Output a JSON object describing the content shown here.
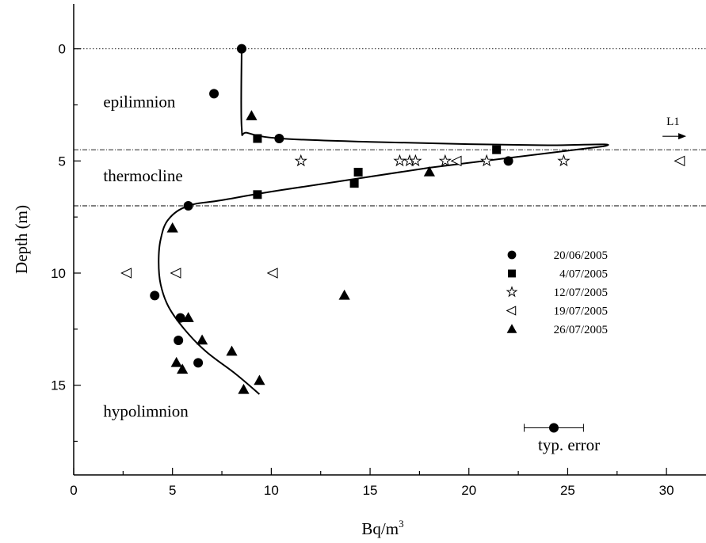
{
  "chart_data": {
    "type": "scatter",
    "xlabel": "Bq/m",
    "xlabel_sup": "3",
    "ylabel": "Depth (m)",
    "xlim": [
      0,
      32
    ],
    "ylim": [
      19,
      -2
    ],
    "y_inverted": true,
    "x_ticks": [
      0,
      5,
      10,
      15,
      20,
      25,
      30
    ],
    "y_ticks": [
      0,
      5,
      10,
      15
    ],
    "grid": false,
    "legend_position": "right",
    "series": [
      {
        "name": "20/06/2005",
        "marker": "filled-circle",
        "points": [
          [
            8.5,
            0
          ],
          [
            7.1,
            2
          ],
          [
            10.4,
            4
          ],
          [
            22.0,
            5
          ],
          [
            5.8,
            7
          ],
          [
            4.1,
            11
          ],
          [
            5.4,
            12
          ],
          [
            5.3,
            13
          ],
          [
            6.3,
            14
          ]
        ]
      },
      {
        "name": "4/07/2005",
        "marker": "filled-square",
        "points": [
          [
            9.3,
            4
          ],
          [
            21.4,
            4.5
          ],
          [
            14.4,
            5.5
          ],
          [
            14.2,
            6
          ],
          [
            9.3,
            6.5
          ]
        ]
      },
      {
        "name": "12/07/2005",
        "marker": "open-star",
        "points": [
          [
            11.5,
            5
          ],
          [
            16.5,
            5
          ],
          [
            17.0,
            5
          ],
          [
            17.3,
            5
          ],
          [
            18.8,
            5
          ],
          [
            20.9,
            5
          ],
          [
            24.8,
            5
          ]
        ]
      },
      {
        "name": "19/07/2005",
        "marker": "open-triangle-left",
        "points": [
          [
            19.4,
            5
          ],
          [
            30.7,
            5
          ],
          [
            2.7,
            10
          ],
          [
            5.2,
            10
          ],
          [
            10.1,
            10
          ]
        ]
      },
      {
        "name": "26/07/2005",
        "marker": "filled-triangle-up",
        "points": [
          [
            9.0,
            3
          ],
          [
            18.0,
            5.5
          ],
          [
            5.0,
            8
          ],
          [
            13.7,
            11
          ],
          [
            5.8,
            12
          ],
          [
            6.5,
            13
          ],
          [
            8.0,
            13.5
          ],
          [
            5.2,
            14
          ],
          [
            5.5,
            14.3
          ],
          [
            9.4,
            14.8
          ],
          [
            8.6,
            15.2
          ]
        ]
      }
    ],
    "fit_curve": [
      [
        8.5,
        0
      ],
      [
        8.5,
        3.5
      ],
      [
        8.8,
        3.75
      ],
      [
        10.5,
        4.0
      ],
      [
        15.0,
        4.15
      ],
      [
        20.0,
        4.25
      ],
      [
        24.0,
        4.3
      ],
      [
        26.8,
        4.35
      ],
      [
        18.0,
        5.3
      ],
      [
        10.5,
        6.3
      ],
      [
        7.5,
        6.75
      ],
      [
        5.8,
        7.0
      ],
      [
        4.8,
        7.6
      ],
      [
        4.4,
        8.5
      ],
      [
        4.3,
        9.5
      ],
      [
        4.4,
        10.5
      ],
      [
        4.8,
        11.5
      ],
      [
        5.6,
        12.5
      ],
      [
        6.7,
        13.5
      ],
      [
        8.2,
        14.5
      ],
      [
        9.4,
        15.4
      ]
    ],
    "reference_lines": [
      {
        "y": 0,
        "style": "dotted"
      },
      {
        "y": 4.5,
        "style": "dash-dot"
      },
      {
        "y": 7.0,
        "style": "dash-dot"
      }
    ],
    "annotations": [
      {
        "text": "epilimnion",
        "x": 1.5,
        "y": 2.6
      },
      {
        "text": "thermocline",
        "x": 1.5,
        "y": 5.9
      },
      {
        "text": "hypolimnion",
        "x": 1.5,
        "y": 16.4
      },
      {
        "text": "L1",
        "x": 30.0,
        "y": 3.4
      },
      {
        "text": "typ. error",
        "x": 23.5,
        "y": 17.9
      }
    ],
    "l1_arrow": {
      "x0": 29.8,
      "x1": 31.0,
      "y": 3.9
    },
    "typical_error": {
      "x": 24.3,
      "y": 16.9,
      "xerr": 1.5
    }
  }
}
